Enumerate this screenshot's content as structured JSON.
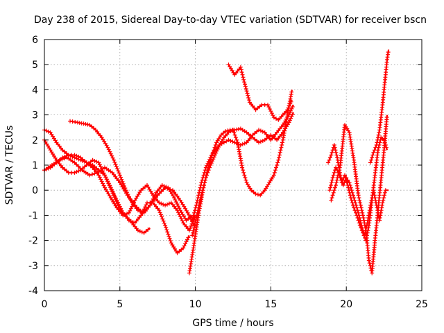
{
  "chart_data": {
    "type": "scatter",
    "title": "Day 238 of 2015, Sidereal Day-to-day VTEC variation (SDTVAR) for receiver bscn",
    "xlabel": "GPS time / hours",
    "ylabel": "SDTVAR / TECUs",
    "xlim": [
      0,
      25
    ],
    "ylim": [
      -4,
      6
    ],
    "x_ticks": [
      0,
      5,
      10,
      15,
      20,
      25
    ],
    "y_ticks": [
      -4,
      -3,
      -2,
      -1,
      0,
      1,
      2,
      3,
      4,
      5,
      6
    ],
    "grid": true,
    "marker": "plus",
    "color": "#ff0000",
    "series": [
      {
        "x": [
          0.0,
          0.4,
          0.8,
          1.2,
          1.6,
          2.0,
          2.4,
          2.8,
          3.2,
          3.6,
          4.0,
          4.3,
          4.6,
          4.9,
          5.2,
          5.5,
          5.8,
          6.2,
          6.6,
          7.0
        ],
        "y": [
          2.4,
          2.3,
          1.9,
          1.6,
          1.4,
          1.3,
          1.2,
          1.1,
          1.0,
          0.8,
          0.6,
          0.2,
          -0.2,
          -0.6,
          -0.9,
          -1.1,
          -1.3,
          -1.6,
          -1.7,
          -1.5
        ]
      },
      {
        "x": [
          0.0,
          0.4,
          0.8,
          1.2,
          1.6,
          2.0,
          2.4,
          2.8,
          3.2,
          3.6,
          4.0,
          4.4,
          4.8,
          5.2,
          5.6,
          6.0,
          6.4,
          6.8,
          7.2,
          7.6,
          8.0,
          8.4,
          8.8,
          9.2,
          9.6
        ],
        "y": [
          2.0,
          1.6,
          1.2,
          0.9,
          0.7,
          0.7,
          0.8,
          1.0,
          1.2,
          1.1,
          0.6,
          0.1,
          -0.4,
          -0.9,
          -1.2,
          -1.3,
          -1.0,
          -0.5,
          -0.5,
          -0.8,
          -1.4,
          -2.1,
          -2.5,
          -2.3,
          -1.8
        ]
      },
      {
        "x": [
          0.0,
          0.4,
          0.8,
          1.2,
          1.6,
          2.0,
          2.4,
          2.8,
          3.2,
          3.6,
          4.0,
          4.4,
          4.8,
          5.2,
          5.6,
          6.0,
          6.4,
          6.8,
          7.2,
          7.6,
          8.0,
          8.4,
          8.8,
          9.2,
          9.6,
          10.0
        ],
        "y": [
          0.8,
          0.9,
          1.1,
          1.3,
          1.4,
          1.4,
          1.3,
          1.1,
          0.9,
          0.6,
          0.1,
          -0.3,
          -0.7,
          -1.0,
          -0.9,
          -0.4,
          0.0,
          0.2,
          -0.2,
          -0.5,
          -0.6,
          -0.5,
          -0.8,
          -1.3,
          -1.6,
          -1.0
        ]
      },
      {
        "x": [
          0.0,
          0.5,
          1.0,
          1.5,
          2.0,
          2.5,
          3.0,
          3.5,
          4.0,
          4.5,
          5.0,
          5.5,
          6.0,
          6.5,
          7.0,
          7.5,
          8.0,
          8.5,
          9.0,
          9.5,
          10.0
        ],
        "y": [
          0.8,
          1.0,
          1.2,
          1.3,
          1.1,
          0.8,
          0.6,
          0.7,
          0.9,
          0.7,
          0.3,
          -0.2,
          -0.6,
          -0.9,
          -0.6,
          -0.2,
          0.1,
          0.0,
          -0.4,
          -0.9,
          -1.5
        ]
      },
      {
        "x": [
          1.7,
          2.2,
          2.6,
          3.0,
          3.4,
          3.8,
          4.2,
          4.6,
          5.0,
          5.4,
          5.8,
          6.2,
          6.6,
          7.0,
          7.4,
          7.8,
          8.2,
          8.6,
          9.0,
          9.4,
          9.8
        ],
        "y": [
          2.75,
          2.7,
          2.65,
          2.6,
          2.4,
          2.1,
          1.7,
          1.2,
          0.6,
          0.0,
          -0.5,
          -0.8,
          -0.9,
          -0.6,
          -0.1,
          0.2,
          0.1,
          -0.3,
          -0.8,
          -1.2,
          -1.0
        ]
      },
      {
        "x": [
          9.6,
          9.9,
          10.2,
          10.5,
          10.8,
          11.1,
          11.4,
          11.7,
          12.0,
          12.3,
          12.6,
          13.0,
          13.4,
          13.8,
          14.2,
          14.6,
          15.0,
          15.4,
          15.8,
          16.2,
          16.5
        ],
        "y": [
          -3.3,
          -2.2,
          -1.0,
          0.0,
          0.8,
          1.4,
          1.9,
          2.2,
          2.35,
          2.4,
          2.4,
          2.45,
          2.3,
          2.1,
          1.9,
          2.0,
          2.2,
          2.0,
          2.3,
          2.7,
          3.1
        ]
      },
      {
        "x": [
          9.8,
          10.1,
          10.4,
          10.7,
          11.0,
          11.3,
          11.6,
          11.9,
          12.2,
          12.6,
          13.0,
          13.4,
          13.8,
          14.2,
          14.6,
          15.0,
          15.4,
          15.8,
          16.2,
          16.5
        ],
        "y": [
          -1.2,
          -0.5,
          0.3,
          0.9,
          1.3,
          1.6,
          1.8,
          1.9,
          2.0,
          1.9,
          1.8,
          1.9,
          2.2,
          2.4,
          2.3,
          2.0,
          2.3,
          2.6,
          3.0,
          3.4
        ]
      },
      {
        "x": [
          9.8,
          10.1,
          10.4,
          10.7,
          11.0,
          11.3,
          11.6,
          11.9,
          12.2,
          12.5,
          12.8,
          13.1,
          13.4,
          13.7,
          14.0,
          14.3,
          14.6,
          14.9,
          15.2,
          15.5,
          15.8,
          16.1,
          16.4
        ],
        "y": [
          -1.8,
          -1.0,
          -0.2,
          0.5,
          1.0,
          1.4,
          1.8,
          2.1,
          2.3,
          2.4,
          1.9,
          0.9,
          0.3,
          0.0,
          -0.15,
          -0.2,
          0.0,
          0.3,
          0.6,
          1.2,
          2.0,
          3.0,
          4.0
        ]
      },
      {
        "x": [
          12.2,
          12.6,
          13.0,
          13.2,
          13.6,
          14.0,
          14.4,
          14.8,
          15.2,
          15.5,
          15.8,
          16.1,
          16.4
        ],
        "y": [
          5.0,
          4.6,
          4.9,
          4.4,
          3.5,
          3.2,
          3.4,
          3.4,
          2.9,
          2.8,
          3.0,
          3.2,
          3.6
        ]
      },
      {
        "x": [
          18.8,
          19.0,
          19.2,
          19.4,
          19.6,
          19.8,
          20.0,
          20.2,
          20.4,
          20.6,
          20.8,
          21.0,
          21.2,
          21.4,
          21.6,
          21.8,
          22.0,
          22.2,
          22.4,
          22.6,
          22.8
        ],
        "y": [
          1.1,
          1.4,
          1.8,
          1.3,
          0.6,
          0.2,
          0.5,
          0.3,
          -0.1,
          -0.5,
          -0.9,
          -1.4,
          -1.8,
          -1.3,
          -0.6,
          0.0,
          -0.6,
          -1.2,
          -0.5,
          0.0,
          0.0
        ]
      },
      {
        "x": [
          18.9,
          19.1,
          19.3,
          19.5,
          19.7,
          19.9,
          20.1,
          20.3,
          20.5,
          20.7,
          20.9,
          21.1,
          21.3,
          21.5,
          21.7,
          21.9,
          22.1,
          22.3,
          22.5,
          22.7
        ],
        "y": [
          0.0,
          0.5,
          0.9,
          0.7,
          0.3,
          0.6,
          0.2,
          -0.3,
          -0.7,
          -1.0,
          -1.4,
          -1.7,
          -2.0,
          -1.4,
          -0.4,
          0.6,
          1.6,
          2.1,
          2.0,
          1.6
        ]
      },
      {
        "x": [
          19.0,
          19.3,
          19.6,
          19.9,
          20.2,
          20.5,
          20.8,
          21.1,
          21.3,
          21.5,
          21.7,
          21.9,
          22.1,
          22.3,
          22.5,
          22.7
        ],
        "y": [
          -0.4,
          0.2,
          1.0,
          2.6,
          2.3,
          1.2,
          -0.2,
          -1.0,
          -1.6,
          -2.8,
          -3.3,
          -2.0,
          -0.8,
          0.4,
          1.6,
          3.0
        ]
      },
      {
        "x": [
          21.6,
          21.8,
          22.0,
          22.2,
          22.4,
          22.6,
          22.7,
          22.8
        ],
        "y": [
          1.1,
          1.5,
          1.8,
          2.4,
          3.4,
          4.6,
          5.2,
          5.6
        ]
      }
    ]
  }
}
